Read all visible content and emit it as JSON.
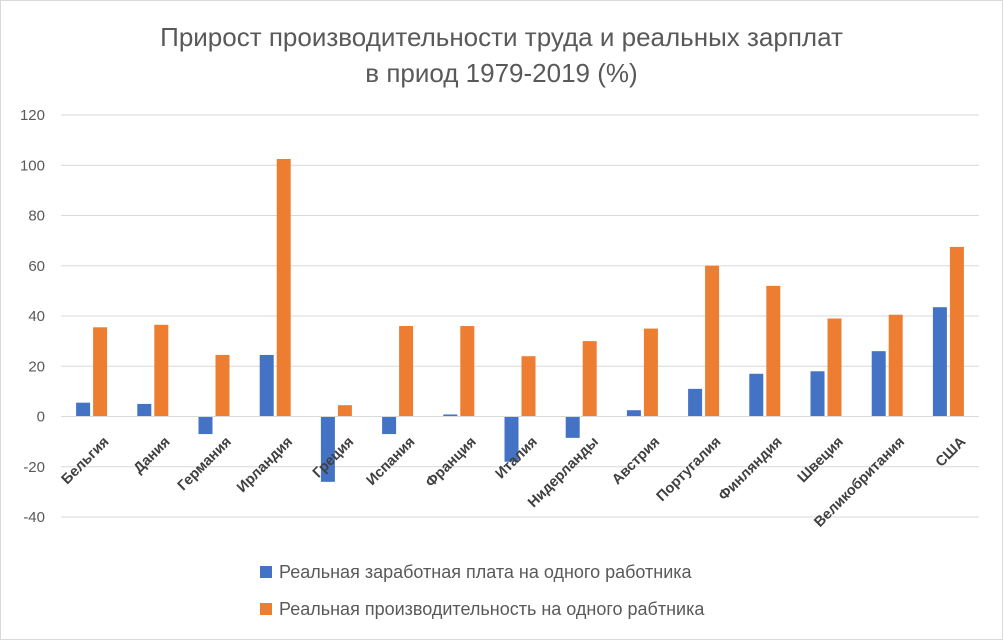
{
  "chart_data": {
    "type": "bar",
    "title": [
      "Прирост производительности труда и реальных зарплат",
      "в приод 1979-2019 (%)"
    ],
    "xlabel": "",
    "ylabel": "",
    "ylim": [
      -40,
      120
    ],
    "yticks": [
      -40,
      -20,
      0,
      20,
      40,
      60,
      80,
      100,
      120
    ],
    "grid": true,
    "legend_position": "bottom",
    "categories": [
      "Бельгия",
      "Дания",
      "Германия",
      "Ирландия",
      "Греция",
      "Испания",
      "Франция",
      "Италия",
      "Нидерланды",
      "Австрия",
      "Португалия",
      "Финляндия",
      "Швеция",
      "Великобритания",
      "США"
    ],
    "series": [
      {
        "name": "Реальная заработная плата на одного работника",
        "color": "#4472c4",
        "values": [
          5.5,
          5,
          -7,
          24.5,
          -26,
          -7,
          0.8,
          -18,
          -8.5,
          2.5,
          11,
          17,
          18,
          26,
          43.5
        ]
      },
      {
        "name": "Реальная производительность на одного рабтника",
        "color": "#ed7d31",
        "values": [
          35.5,
          36.5,
          24.5,
          102.5,
          4.5,
          36,
          36,
          24,
          30,
          35,
          60,
          52,
          39,
          40.5,
          67.5
        ]
      }
    ]
  }
}
